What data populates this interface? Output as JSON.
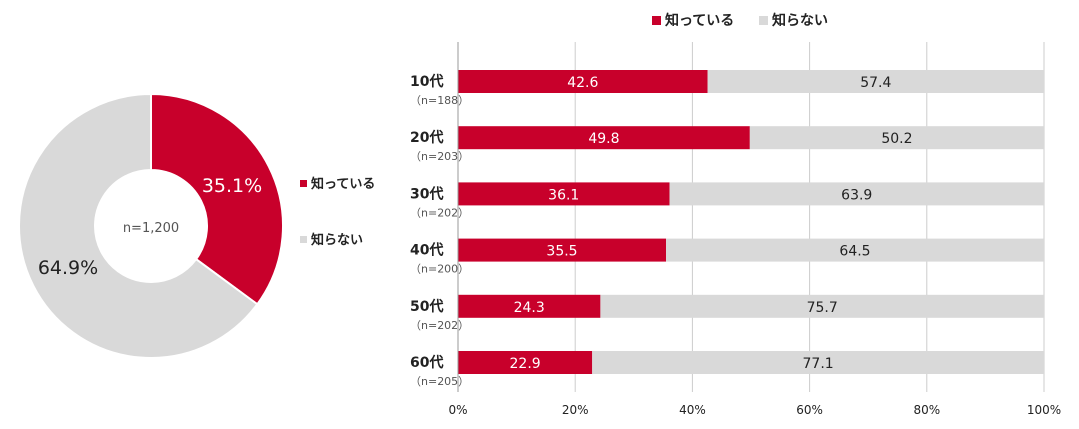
{
  "colors": {
    "known": "#c8002b",
    "unknown": "#d9d9d9",
    "grid": "#cccccc",
    "text": "#222222",
    "subtext": "#555555"
  },
  "chart_data": [
    {
      "type": "pie",
      "variant": "donut",
      "center_label": "n=1,200",
      "slices": [
        {
          "name": "知っている",
          "value": 35.1,
          "label": "35.1%",
          "color": "#c8002b"
        },
        {
          "name": "知らない",
          "value": 64.9,
          "label": "64.9%",
          "color": "#d9d9d9"
        }
      ],
      "legend": {
        "position": "right",
        "items": [
          "知っている",
          "知らない"
        ]
      }
    },
    {
      "type": "bar",
      "orientation": "horizontal",
      "stacked": true,
      "categories": [
        "10代",
        "20代",
        "30代",
        "40代",
        "50代",
        "60代"
      ],
      "category_notes": [
        "（n=188）",
        "（n=203）",
        "（n=202）",
        "（n=200）",
        "（n=202）",
        "（n=205）"
      ],
      "series": [
        {
          "name": "知っている",
          "values": [
            42.6,
            49.8,
            36.1,
            35.5,
            24.3,
            22.9
          ],
          "labels": [
            "42.6",
            "49.8",
            "36.1",
            "35.5",
            "24.3",
            "22.9"
          ],
          "color": "#c8002b"
        },
        {
          "name": "知らない",
          "values": [
            57.4,
            50.2,
            63.9,
            64.5,
            75.7,
            77.1
          ],
          "labels": [
            "57.4",
            "50.2",
            "63.9",
            "64.5",
            "75.7",
            "77.1"
          ],
          "color": "#d9d9d9"
        }
      ],
      "xlim": [
        0,
        100
      ],
      "x_ticks": [
        "0%",
        "20%",
        "40%",
        "60%",
        "80%",
        "100%"
      ],
      "grid": true,
      "legend": {
        "position": "top",
        "items": [
          "知っている",
          "知らない"
        ]
      }
    }
  ]
}
